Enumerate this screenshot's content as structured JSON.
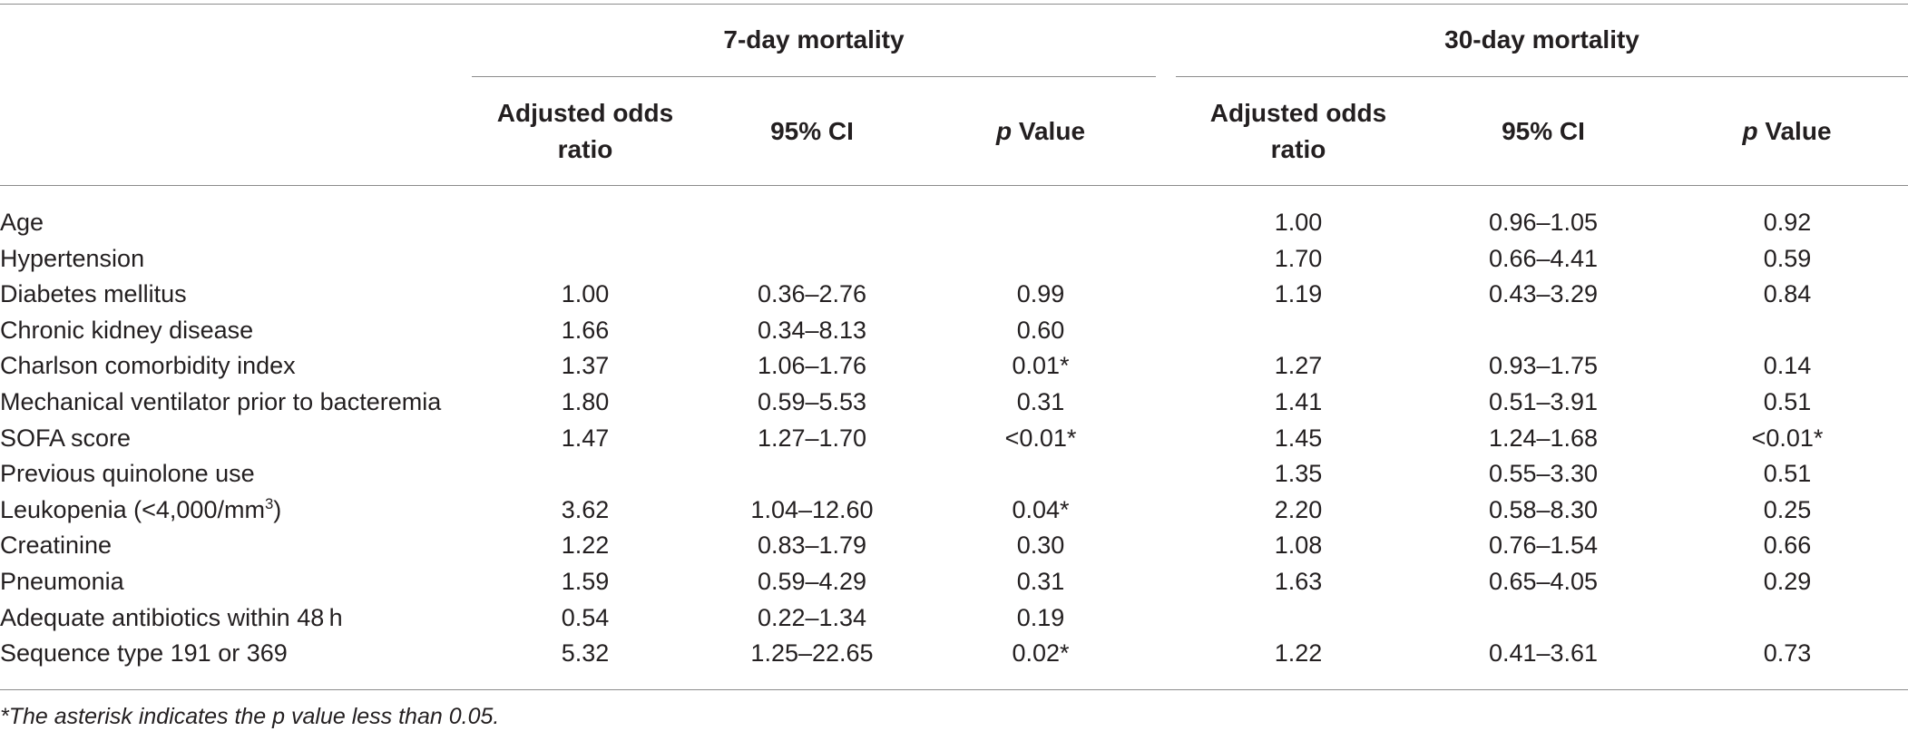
{
  "table": {
    "groups": [
      {
        "label": "7-day mortality"
      },
      {
        "label": "30-day mortality"
      }
    ],
    "columns": {
      "or_line1": "Adjusted odds",
      "or_line2": "ratio",
      "ci": "95% CI",
      "p_italic": "p",
      "p_rest": " Value"
    },
    "rows": [
      {
        "label": "Age",
        "label_sup": "",
        "label_after": "",
        "d7": [
          "",
          "",
          ""
        ],
        "d30": [
          "1.00",
          "0.96–1.05",
          "0.92"
        ]
      },
      {
        "label": "Hypertension",
        "label_sup": "",
        "label_after": "",
        "d7": [
          "",
          "",
          ""
        ],
        "d30": [
          "1.70",
          "0.66–4.41",
          "0.59"
        ]
      },
      {
        "label": "Diabetes mellitus",
        "label_sup": "",
        "label_after": "",
        "d7": [
          "1.00",
          "0.36–2.76",
          "0.99"
        ],
        "d30": [
          "1.19",
          "0.43–3.29",
          "0.84"
        ]
      },
      {
        "label": "Chronic kidney disease",
        "label_sup": "",
        "label_after": "",
        "d7": [
          "1.66",
          "0.34–8.13",
          "0.60"
        ],
        "d30": [
          "",
          "",
          ""
        ]
      },
      {
        "label": "Charlson comorbidity index",
        "label_sup": "",
        "label_after": "",
        "d7": [
          "1.37",
          "1.06–1.76",
          "0.01*"
        ],
        "d30": [
          "1.27",
          "0.93–1.75",
          "0.14"
        ]
      },
      {
        "label": "Mechanical ventilator prior to bacteremia",
        "label_sup": "",
        "label_after": "",
        "d7": [
          "1.80",
          "0.59–5.53",
          "0.31"
        ],
        "d30": [
          "1.41",
          "0.51–3.91",
          "0.51"
        ]
      },
      {
        "label": "SOFA score",
        "label_sup": "",
        "label_after": "",
        "d7": [
          "1.47",
          "1.27–1.70",
          "<0.01*"
        ],
        "d30": [
          "1.45",
          "1.24–1.68",
          "<0.01*"
        ]
      },
      {
        "label": "Previous quinolone use",
        "label_sup": "",
        "label_after": "",
        "d7": [
          "",
          "",
          ""
        ],
        "d30": [
          "1.35",
          "0.55–3.30",
          "0.51"
        ]
      },
      {
        "label": "Leukopenia (<4,000/mm",
        "label_sup": "3",
        "label_after": ")",
        "d7": [
          "3.62",
          "1.04–12.60",
          "0.04*"
        ],
        "d30": [
          "2.20",
          "0.58–8.30",
          "0.25"
        ]
      },
      {
        "label": "Creatinine",
        "label_sup": "",
        "label_after": "",
        "d7": [
          "1.22",
          "0.83–1.79",
          "0.30"
        ],
        "d30": [
          "1.08",
          "0.76–1.54",
          "0.66"
        ]
      },
      {
        "label": "Pneumonia",
        "label_sup": "",
        "label_after": "",
        "d7": [
          "1.59",
          "0.59–4.29",
          "0.31"
        ],
        "d30": [
          "1.63",
          "0.65–4.05",
          "0.29"
        ]
      },
      {
        "label": "Adequate antibiotics within 48 h",
        "label_sup": "",
        "label_after": "",
        "d7": [
          "0.54",
          "0.22–1.34",
          "0.19"
        ],
        "d30": [
          "",
          "",
          ""
        ]
      },
      {
        "label": "Sequence type 191 or 369",
        "label_sup": "",
        "label_after": "",
        "d7": [
          "5.32",
          "1.25–22.65",
          "0.02*"
        ],
        "d30": [
          "1.22",
          "0.41–3.61",
          "0.73"
        ]
      }
    ]
  },
  "footnote": "*The asterisk indicates the p value less than 0.05."
}
